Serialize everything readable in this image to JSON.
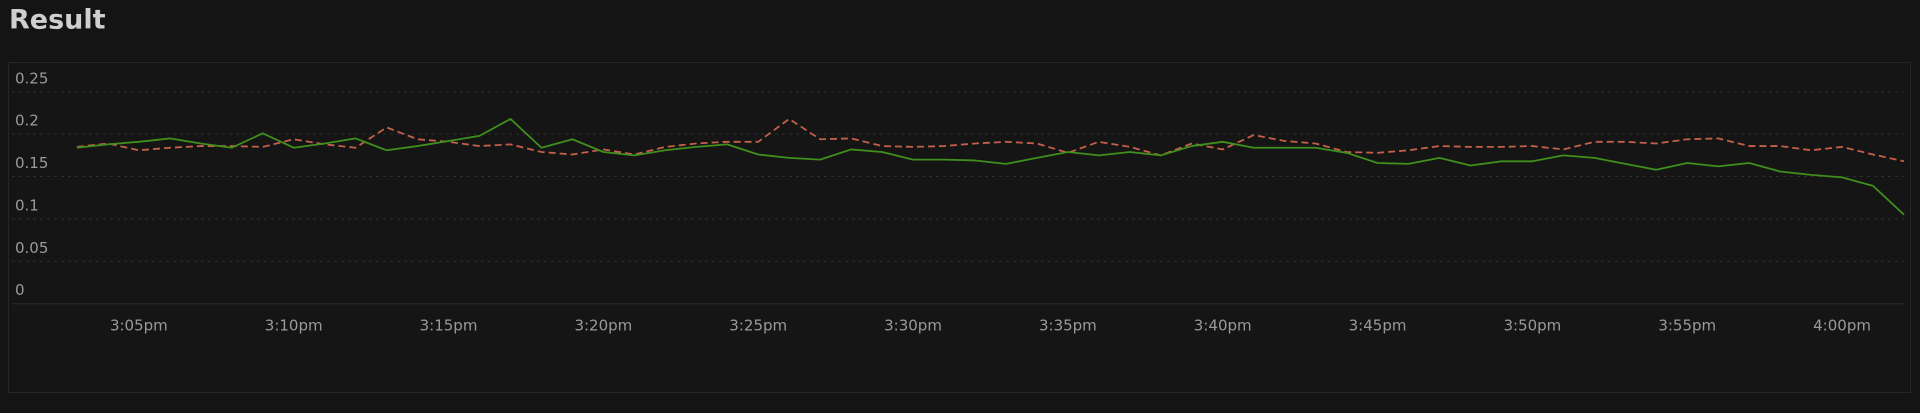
{
  "chart_data": {
    "type": "line",
    "title": "Result",
    "x": [
      "3:03pm",
      "3:04pm",
      "3:05pm",
      "3:06pm",
      "3:07pm",
      "3:08pm",
      "3:09pm",
      "3:10pm",
      "3:11pm",
      "3:12pm",
      "3:13pm",
      "3:14pm",
      "3:15pm",
      "3:16pm",
      "3:17pm",
      "3:18pm",
      "3:19pm",
      "3:20pm",
      "3:21pm",
      "3:22pm",
      "3:23pm",
      "3:24pm",
      "3:25pm",
      "3:26pm",
      "3:27pm",
      "3:28pm",
      "3:29pm",
      "3:30pm",
      "3:31pm",
      "3:32pm",
      "3:33pm",
      "3:34pm",
      "3:35pm",
      "3:36pm",
      "3:37pm",
      "3:38pm",
      "3:39pm",
      "3:40pm",
      "3:41pm",
      "3:42pm",
      "3:43pm",
      "3:44pm",
      "3:45pm",
      "3:46pm",
      "3:47pm",
      "3:48pm",
      "3:49pm",
      "3:50pm",
      "3:51pm",
      "3:52pm",
      "3:53pm",
      "3:54pm",
      "3:55pm",
      "3:56pm",
      "3:57pm",
      "3:58pm",
      "3:59pm",
      "4:00pm",
      "4:01pm",
      "4:02pm"
    ],
    "series": [
      {
        "color": "#3f8f1c",
        "dashed": false,
        "values": [
          0.184,
          0.188,
          0.191,
          0.195,
          0.189,
          0.184,
          0.201,
          0.184,
          0.189,
          0.195,
          0.181,
          0.186,
          0.192,
          0.198,
          0.218,
          0.184,
          0.194,
          0.179,
          0.175,
          0.181,
          0.185,
          0.188,
          0.176,
          0.172,
          0.17,
          0.182,
          0.179,
          0.17,
          0.17,
          0.169,
          0.165,
          0.172,
          0.179,
          0.175,
          0.179,
          0.175,
          0.186,
          0.191,
          0.184,
          0.184,
          0.184,
          0.178,
          0.166,
          0.165,
          0.172,
          0.163,
          0.168,
          0.168,
          0.175,
          0.172,
          0.165,
          0.158,
          0.166,
          0.162,
          0.166,
          0.156,
          0.152,
          0.149,
          0.139,
          0.105
        ]
      },
      {
        "color": "#c4604a",
        "dashed": true,
        "values": [
          0.185,
          0.189,
          0.181,
          0.184,
          0.186,
          0.186,
          0.185,
          0.194,
          0.188,
          0.184,
          0.208,
          0.194,
          0.191,
          0.186,
          0.188,
          0.179,
          0.176,
          0.182,
          0.176,
          0.185,
          0.189,
          0.191,
          0.191,
          0.218,
          0.194,
          0.195,
          0.186,
          0.185,
          0.186,
          0.189,
          0.191,
          0.189,
          0.178,
          0.191,
          0.185,
          0.175,
          0.189,
          0.182,
          0.199,
          0.192,
          0.189,
          0.179,
          0.178,
          0.181,
          0.186,
          0.185,
          0.185,
          0.186,
          0.182,
          0.191,
          0.191,
          0.189,
          0.194,
          0.195,
          0.186,
          0.186,
          0.181,
          0.185,
          0.176,
          0.168
        ]
      }
    ],
    "xlim": [
      "3:01pm",
      "4:02pm"
    ],
    "xticks": [
      "3:05pm",
      "3:10pm",
      "3:15pm",
      "3:20pm",
      "3:25pm",
      "3:30pm",
      "3:35pm",
      "3:40pm",
      "3:45pm",
      "3:50pm",
      "3:55pm",
      "4:00pm"
    ],
    "ylim": [
      0,
      0.25
    ],
    "yticks": [
      0,
      0.05,
      0.1,
      0.15,
      0.2,
      0.25
    ],
    "grid": true
  }
}
